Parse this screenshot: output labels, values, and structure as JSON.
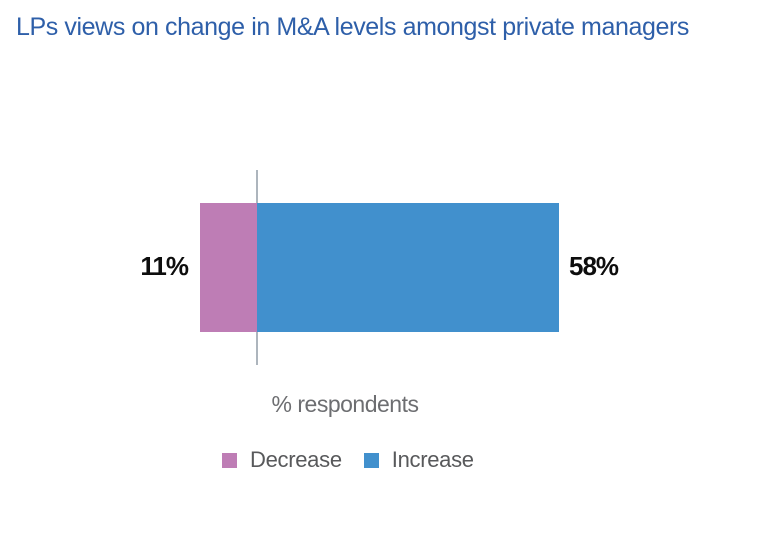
{
  "chart_data": {
    "type": "bar",
    "subtype": "diverging-horizontal",
    "title": "LPs views on change in M&A levels amongst private managers",
    "title_color": "#2e5fa9",
    "xlabel": "% respondents",
    "baseline": 0,
    "unit": "percent",
    "series": [
      {
        "name": "Decrease",
        "value": 11,
        "direction": "left",
        "color": "#be7db5",
        "data_label": "11%"
      },
      {
        "name": "Increase",
        "value": 58,
        "direction": "right",
        "color": "#4190cd",
        "data_label": "58%"
      }
    ],
    "legend_position": "bottom",
    "axis_line_color": "#adb5bd",
    "value_label_color": "#0d0d0d",
    "xlabel_color": "#6d6e71",
    "legend_text_color": "#58595b",
    "background_color": "#ffffff"
  }
}
